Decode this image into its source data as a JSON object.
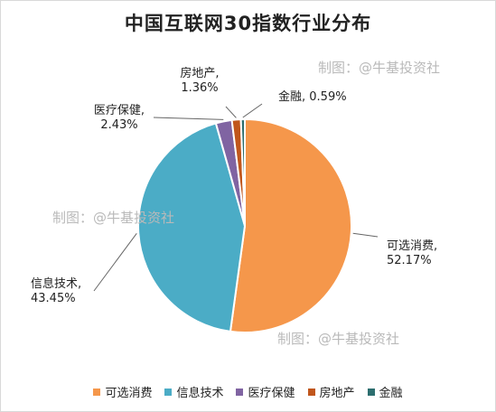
{
  "title": "中国互联网30指数行业分布",
  "watermark": "制图：@牛基投资社",
  "chart_data": {
    "type": "pie",
    "title": "中国互联网30指数行业分布",
    "unit": "%",
    "slices": [
      {
        "name": "可选消费",
        "value": 52.17,
        "label": "52.17%",
        "color": "#F5974B"
      },
      {
        "name": "信息技术",
        "value": 43.45,
        "label": "43.45%",
        "color": "#4BACC6"
      },
      {
        "name": "医疗保健",
        "value": 2.43,
        "label": "2.43%",
        "color": "#8064A2"
      },
      {
        "name": "房地产",
        "value": 1.36,
        "label": "1.36%",
        "color": "#C0561C"
      },
      {
        "name": "金融",
        "value": 0.59,
        "label": "0.59%",
        "color": "#2C6E6F"
      }
    ],
    "legend_position": "bottom"
  }
}
